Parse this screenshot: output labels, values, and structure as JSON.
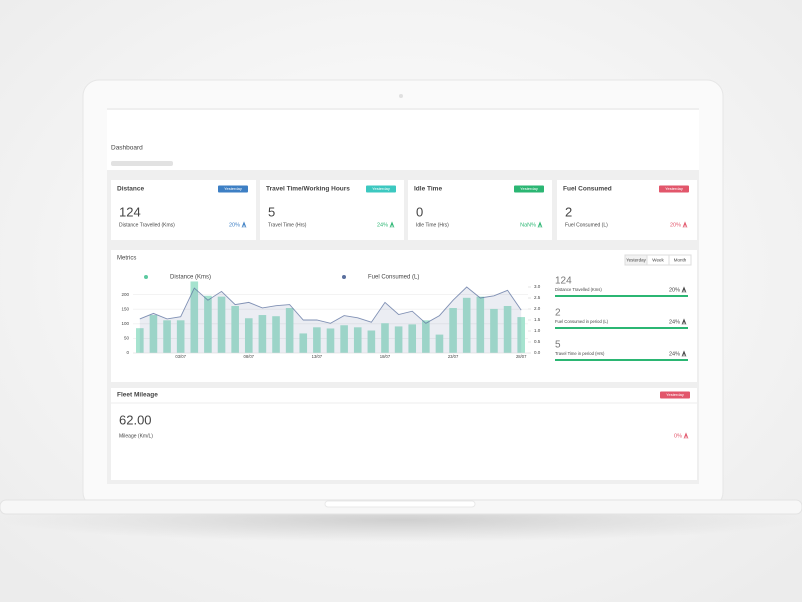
{
  "header": {
    "title": "Dashboard"
  },
  "cards": [
    {
      "title": "Distance",
      "badge": "Yesterday",
      "badge_color": "#3d7fc4",
      "value": "124",
      "label": "Distance Travelled (Kms)",
      "change": "20%",
      "change_color": "#3d7fc4"
    },
    {
      "title": "Travel Time/Working Hours",
      "badge": "Yesterday",
      "badge_color": "#3cc8c0",
      "value": "5",
      "label": "Travel Time (Hrs)",
      "change": "24%",
      "change_color": "#2bb673"
    },
    {
      "title": "Idle Time",
      "badge": "Yesterday",
      "badge_color": "#2bb673",
      "value": "0",
      "label": "Idle Time (Hrs)",
      "change": "NaN%",
      "change_color": "#2bb673"
    },
    {
      "title": "Fuel Consumed",
      "badge": "Yesterday",
      "badge_color": "#e2566b",
      "value": "2",
      "label": "Fuel Consumed (L)",
      "change": "20%",
      "change_color": "#e2566b"
    }
  ],
  "metrics": {
    "title": "Metrics",
    "periods": [
      "Yesterday",
      "Week",
      "Month"
    ],
    "stats": [
      {
        "value": "124",
        "label": "Distance Travelled (Kms)",
        "change": "20%"
      },
      {
        "value": "2",
        "label": "Fuel Consumed in period (L)",
        "change": "24%"
      },
      {
        "value": "5",
        "label": "Travel Time in period (Hrs)",
        "change": "24%"
      }
    ]
  },
  "chart_data": {
    "type": "bar",
    "categories": [
      null,
      null,
      null,
      "03/07",
      null,
      null,
      null,
      null,
      "08/07",
      null,
      null,
      null,
      null,
      "13/07",
      null,
      null,
      null,
      null,
      "18/07",
      null,
      null,
      null,
      null,
      "23/07",
      null,
      null,
      null,
      null,
      "28/07"
    ],
    "series": [
      {
        "name": "Distance (Kms)",
        "type": "bar",
        "color": "#a6e3cf",
        "values": [
          85,
          130,
          112,
          112,
          245,
          196,
          193,
          161,
          119,
          130,
          126,
          154,
          67,
          88,
          84,
          95,
          88,
          77,
          102,
          91,
          98,
          112,
          63,
          154,
          189,
          193,
          151,
          161,
          123
        ]
      },
      {
        "name": "Fuel Consumed (L)",
        "type": "area",
        "axis": "y2",
        "color": "#5a6f9e",
        "values": [
          1.55,
          1.8,
          1.55,
          1.65,
          2.95,
          2.4,
          2.8,
          2.2,
          2.3,
          2.05,
          2.15,
          2.2,
          1.5,
          1.5,
          1.35,
          1.7,
          1.6,
          1.4,
          2.3,
          1.75,
          1.9,
          1.35,
          1.7,
          2.4,
          3.0,
          2.5,
          2.6,
          2.85,
          1.95
        ]
      }
    ],
    "ylim": [
      0,
      250
    ],
    "yticks": [
      0,
      50,
      100,
      150,
      200
    ],
    "y2lim": [
      0,
      3
    ],
    "y2ticks": [
      {
        "value": 0,
        "label": "0.0"
      },
      {
        "value": 0.5,
        "label": "0.5"
      },
      {
        "value": 1,
        "label": "1.0"
      },
      {
        "value": 1.5,
        "label": "1.5"
      },
      {
        "value": 2,
        "label": "2.0"
      },
      {
        "value": 2.5,
        "label": "2.5"
      },
      {
        "value": 3,
        "label": "3.0"
      }
    ],
    "grid": true
  },
  "fleet_mileage": {
    "title": "Fleet Mileage",
    "badge": "Yesterday",
    "badge_color": "#e2566b",
    "value": "62.00",
    "label": "Mileage (Km/L)",
    "change": "0%",
    "change_color": "#e2566b"
  }
}
